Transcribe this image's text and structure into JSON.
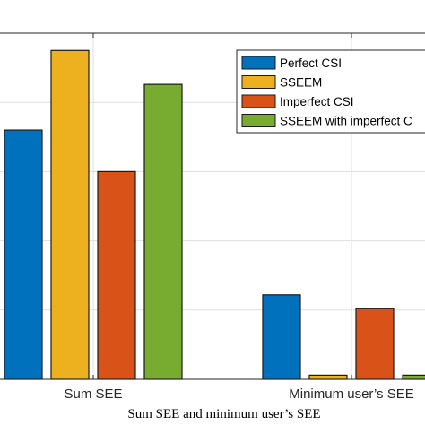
{
  "chart_data": {
    "type": "bar",
    "title": "",
    "xlabel": "Sum SEE and minimum user’s SEE",
    "ylabel": "",
    "categories": [
      "Sum SEE",
      "Minimum user’s SEE"
    ],
    "series": [
      {
        "name": "Perfect CSI",
        "color": "#0072BD",
        "values": [
          3.6,
          1.22
        ]
      },
      {
        "name": "SSEEM",
        "color": "#EDB120",
        "values": [
          4.75,
          0.06
        ]
      },
      {
        "name": "Imperfect CSI",
        "color": "#D95319",
        "values": [
          3.0,
          1.02
        ]
      },
      {
        "name": "SSEEM with imperfect C",
        "color": "#77AC30",
        "values": [
          4.26,
          0.06
        ]
      }
    ],
    "ylim": [
      0,
      5
    ],
    "grid": true,
    "legend_position": "top-right"
  }
}
